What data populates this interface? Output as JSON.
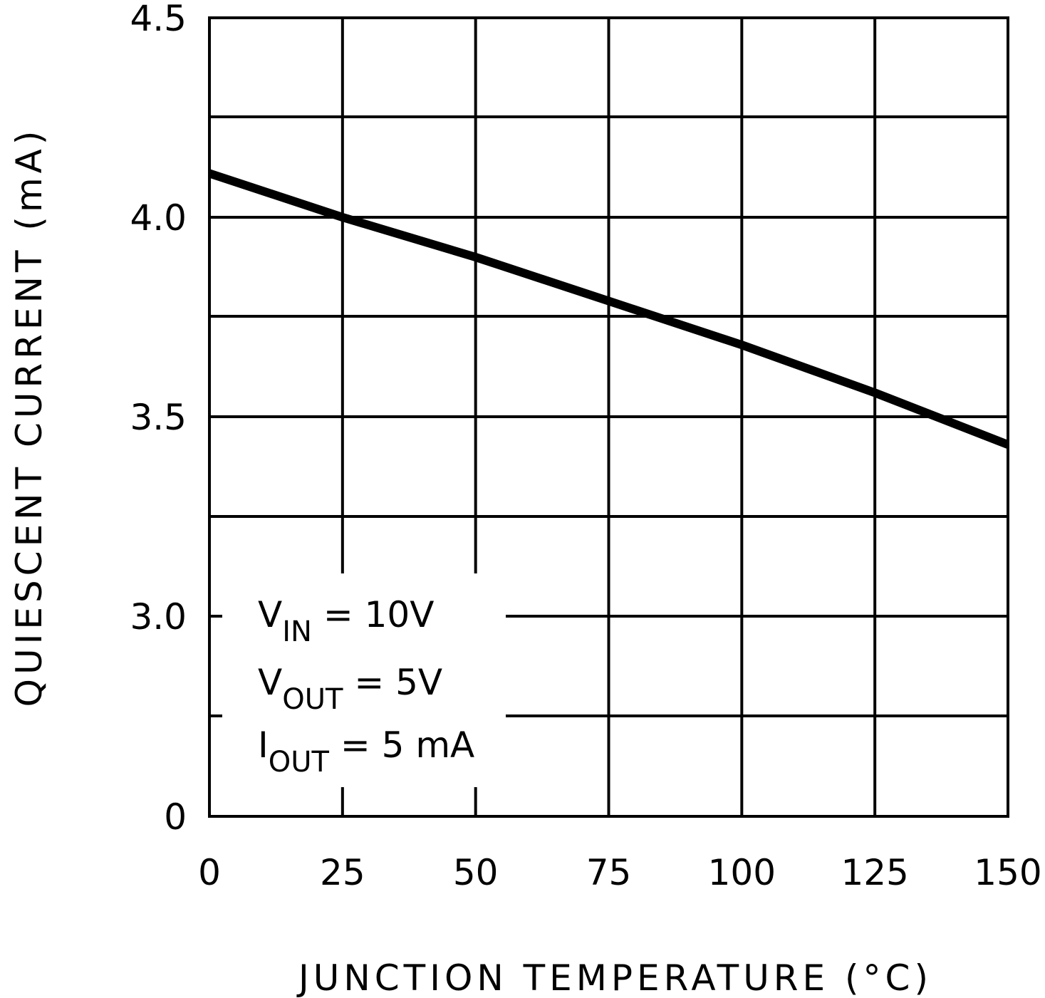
{
  "chart_data": {
    "type": "line",
    "title": "",
    "xlabel": "JUNCTION TEMPERATURE (°C)",
    "ylabel": "QUIESCENT CURRENT (mA)",
    "xlim": [
      0,
      150
    ],
    "x_ticks": [
      0,
      25,
      50,
      75,
      100,
      125,
      150
    ],
    "x_tick_labels": [
      "0",
      "25",
      "50",
      "75",
      "100",
      "125",
      "150"
    ],
    "y_tick_labels": [
      "0",
      "3.0",
      "3.5",
      "4.0",
      "4.5"
    ],
    "y_axis_note": "axis broken: bottom label 0, then 3.0 to 4.5 in 0.5 steps with minor gridlines at 0.25",
    "grid": true,
    "series": [
      {
        "name": "Quiescent current",
        "x": [
          0,
          25,
          50,
          75,
          100,
          125,
          150
        ],
        "y": [
          4.11,
          4.0,
          3.9,
          3.79,
          3.68,
          3.56,
          3.43
        ]
      }
    ],
    "annotations": [
      {
        "main": "V",
        "sub": "IN",
        "rest": " = 10V"
      },
      {
        "main": "V",
        "sub": "OUT",
        "rest": " = 5V"
      },
      {
        "main": "I",
        "sub": "OUT",
        "rest": " = 5 mA"
      }
    ]
  }
}
